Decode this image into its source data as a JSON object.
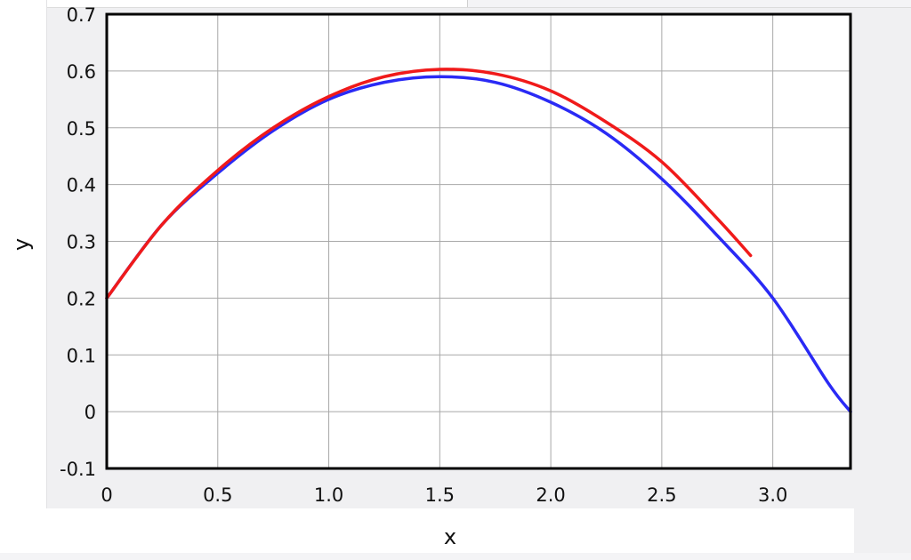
{
  "chart_data": {
    "type": "line",
    "title": "",
    "xlabel": "x",
    "ylabel": "y",
    "xlim": [
      0,
      3.35
    ],
    "ylim": [
      -0.1,
      0.7
    ],
    "grid": true,
    "x_ticks": [
      "0",
      "0.5",
      "1.0",
      "1.5",
      "2.0",
      "2.5",
      "3.0"
    ],
    "x_tick_values": [
      0,
      0.5,
      1.0,
      1.5,
      2.0,
      2.5,
      3.0
    ],
    "y_ticks": [
      "-0.1",
      "0",
      "0.1",
      "0.2",
      "0.3",
      "0.4",
      "0.5",
      "0.6",
      "0.7"
    ],
    "y_tick_values": [
      -0.1,
      0,
      0.1,
      0.2,
      0.3,
      0.4,
      0.5,
      0.6,
      0.7
    ],
    "series": [
      {
        "color": "#2a2af5",
        "x": [
          0,
          0.25,
          0.5,
          0.75,
          1.0,
          1.25,
          1.5,
          1.75,
          2.0,
          2.25,
          2.5,
          2.75,
          3.0,
          3.25,
          3.35
        ],
        "y": [
          0.2,
          0.33,
          0.42,
          0.495,
          0.55,
          0.58,
          0.59,
          0.58,
          0.545,
          0.49,
          0.41,
          0.31,
          0.2,
          0.05,
          0.0
        ]
      },
      {
        "color": "#f01a1a",
        "x": [
          0,
          0.25,
          0.5,
          0.75,
          1.0,
          1.25,
          1.5,
          1.75,
          2.0,
          2.25,
          2.5,
          2.75,
          2.9
        ],
        "y": [
          0.2,
          0.33,
          0.425,
          0.5,
          0.555,
          0.59,
          0.603,
          0.595,
          0.565,
          0.51,
          0.44,
          0.34,
          0.275
        ]
      }
    ]
  }
}
